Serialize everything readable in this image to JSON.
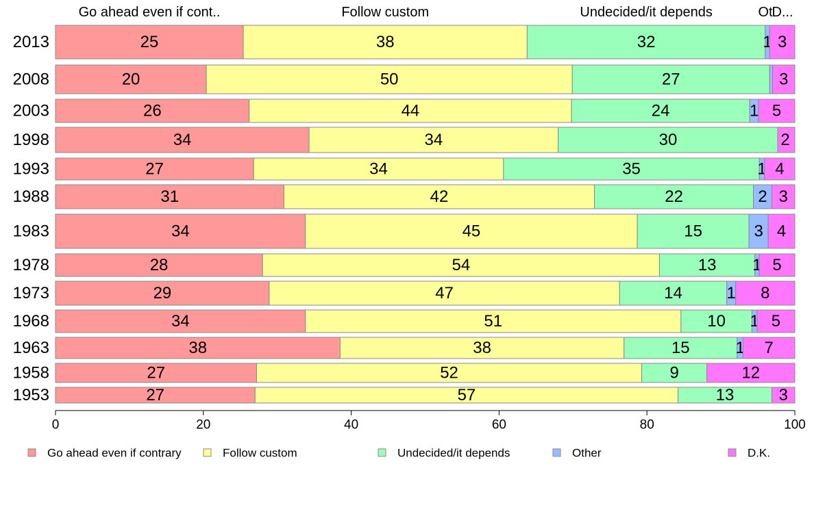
{
  "chart_data": {
    "type": "bar",
    "orientation": "horizontal",
    "stacked": true,
    "xlim": [
      0,
      100
    ],
    "x_ticks": [
      0,
      20,
      40,
      60,
      80,
      100
    ],
    "top_labels": [
      "Go ahead even if cont..",
      "Follow custom",
      "Undecided/it depends",
      "Ot",
      "D..."
    ],
    "categories": [
      "2013",
      "2008",
      "2003",
      "1998",
      "1993",
      "1988",
      "1983",
      "1978",
      "1973",
      "1968",
      "1963",
      "1958",
      "1953"
    ],
    "series": [
      {
        "name": "Go ahead even if contrary",
        "color": "#ff9999",
        "values": [
          25.4,
          20.4,
          26.2,
          34.3,
          26.8,
          30.9,
          33.8,
          28.0,
          28.9,
          33.8,
          38.5,
          27.2,
          27.0
        ]
      },
      {
        "name": "Follow custom",
        "color": "#ffff99",
        "values": [
          38.4,
          49.5,
          43.6,
          33.7,
          33.8,
          42.0,
          44.9,
          53.7,
          47.4,
          50.8,
          38.4,
          52.1,
          57.2
        ]
      },
      {
        "name": "Undecided/it depends",
        "color": "#99ffbb",
        "values": [
          32.2,
          26.7,
          24.1,
          29.7,
          34.6,
          21.5,
          15.1,
          12.9,
          14.5,
          9.6,
          15.3,
          8.8,
          12.7
        ]
      },
      {
        "name": "Other",
        "color": "#99bbff",
        "values": [
          0.6,
          0.4,
          1.2,
          0,
          0.7,
          2.5,
          2.6,
          0.6,
          1.2,
          0.7,
          0.8,
          0,
          0
        ]
      },
      {
        "name": "D.K.",
        "color": "#ff77ff",
        "values": [
          3.4,
          3.0,
          4.9,
          2.3,
          4.1,
          3.1,
          3.6,
          4.8,
          8.0,
          5.1,
          7.0,
          11.9,
          3.1
        ]
      }
    ],
    "data_labels": [
      [
        "25",
        "38",
        "32",
        "1",
        "3"
      ],
      [
        "20",
        "50",
        "27",
        "",
        "3"
      ],
      [
        "26",
        "44",
        "24",
        "1",
        "5"
      ],
      [
        "34",
        "34",
        "30",
        "",
        "2"
      ],
      [
        "27",
        "34",
        "35",
        "1",
        "4"
      ],
      [
        "31",
        "42",
        "22",
        "2",
        "3"
      ],
      [
        "34",
        "45",
        "15",
        "3",
        "4"
      ],
      [
        "28",
        "54",
        "13",
        "1",
        "5"
      ],
      [
        "29",
        "47",
        "14",
        "1",
        "8"
      ],
      [
        "34",
        "51",
        "10",
        "1",
        "5"
      ],
      [
        "38",
        "38",
        "15",
        "1",
        "7"
      ],
      [
        "27",
        "52",
        "9",
        "",
        "12"
      ],
      [
        "27",
        "57",
        "13",
        "",
        "3"
      ]
    ],
    "legend": {
      "position": "bottom",
      "entries": [
        "Go ahead even if contrary",
        "Follow custom",
        "Undecided/it depends",
        "Other",
        "D.K."
      ]
    },
    "grid": false
  }
}
